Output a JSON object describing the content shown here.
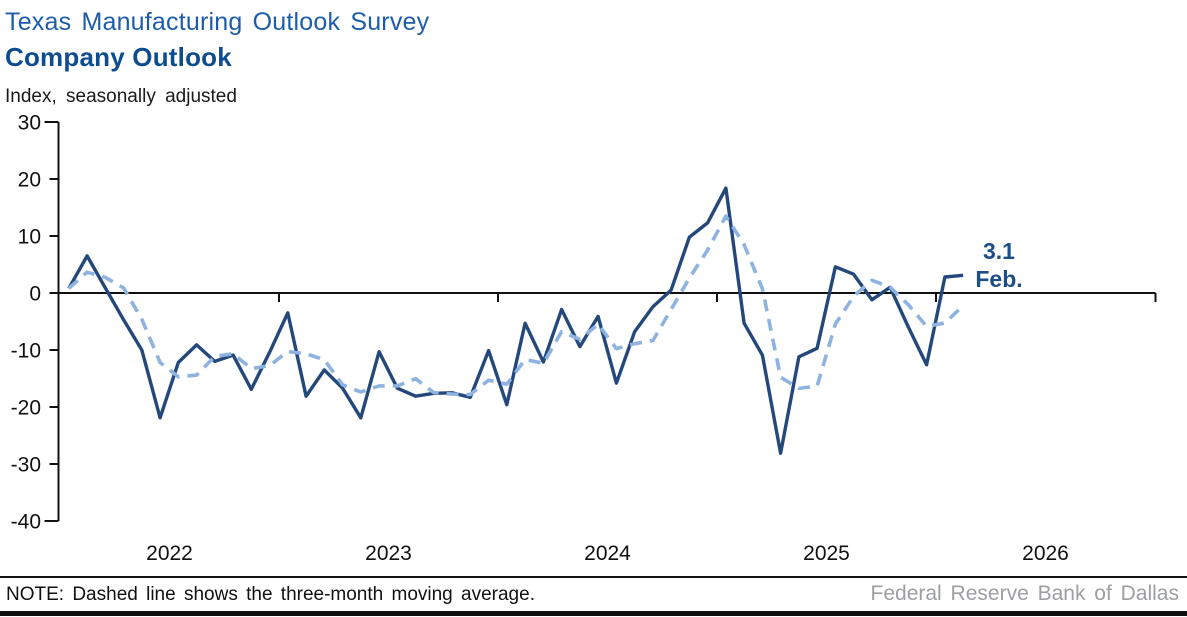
{
  "header": {
    "title_line1": "Texas Manufacturing Outlook Survey",
    "title_line2": "Company Outlook",
    "unit_label": "Index, seasonally adjusted"
  },
  "footer": {
    "note": "NOTE: Dashed line shows the three-month moving average.",
    "attribution": "Federal Reserve Bank of Dallas"
  },
  "colors": {
    "title_blue": "#1D5CA8",
    "title_bold_blue": "#0E4C90",
    "index_line": "#24487B",
    "moving_average_line": "#8FB3E0",
    "annotation_blue": "#1D4E87",
    "axis_black": "#111111",
    "attribution_gray": "#9C9EA1"
  },
  "chart_data": {
    "type": "line",
    "title": "Company Outlook",
    "ylabel": "Index, seasonally adjusted",
    "x_frequency": "monthly",
    "x_start": "Jan 2022",
    "x_end": "Feb 2026",
    "x_tick_labels": [
      "2022",
      "2023",
      "2024",
      "2025",
      "2026"
    ],
    "ylim": [
      -40,
      30
    ],
    "yticks": [
      30,
      20,
      10,
      0,
      -10,
      -20,
      -30,
      -40
    ],
    "grid": false,
    "legend": "none (dashed line identified in bottom note)",
    "series": [
      {
        "name": "Company Outlook index",
        "style": "solid",
        "values": [
          0.8,
          6.5,
          0.9,
          -4.7,
          -10.0,
          -21.9,
          -12.2,
          -9.1,
          -12.0,
          -10.9,
          -16.9,
          -10.4,
          -3.5,
          -18.1,
          -13.5,
          -16.7,
          -21.9,
          -10.3,
          -16.7,
          -18.1,
          -17.6,
          -17.5,
          -18.3,
          -10.1,
          -19.6,
          -5.3,
          -12.1,
          -2.9,
          -9.4,
          -4.1,
          -15.8,
          -6.8,
          -2.4,
          0.5,
          9.8,
          12.3,
          18.4,
          -5.3,
          -10.9,
          -28.1,
          -11.2,
          -9.7,
          4.6,
          3.3,
          -1.2,
          1.0,
          -6.0,
          -12.6,
          2.8,
          3.1
        ]
      },
      {
        "name": "Three-month moving average",
        "style": "dashed",
        "derived_from": "3-month trailing moving average of the index values"
      }
    ],
    "last_point_annotation": {
      "label": "3.1",
      "period": "Feb.",
      "value": 3.1
    }
  }
}
